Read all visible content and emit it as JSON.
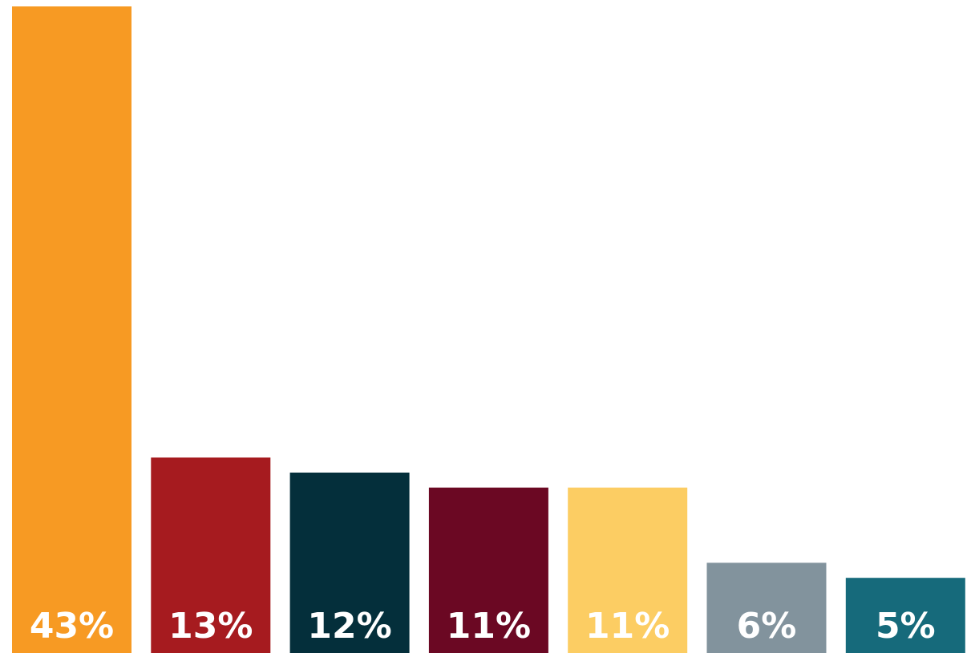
{
  "chart_data": {
    "type": "bar",
    "title": "",
    "xlabel": "",
    "ylabel": "",
    "ylim": [
      0,
      43
    ],
    "grid": false,
    "legend": "none",
    "values": [
      43,
      13,
      12,
      11,
      11,
      6,
      5
    ],
    "data_labels": [
      "43%",
      "13%",
      "12%",
      "11%",
      "11%",
      "6%",
      "5%"
    ],
    "colors": [
      "#F79A23",
      "#A61B1F",
      "#042F3B",
      "#6B0823",
      "#FCCD63",
      "#82939D",
      "#166A7B"
    ]
  }
}
